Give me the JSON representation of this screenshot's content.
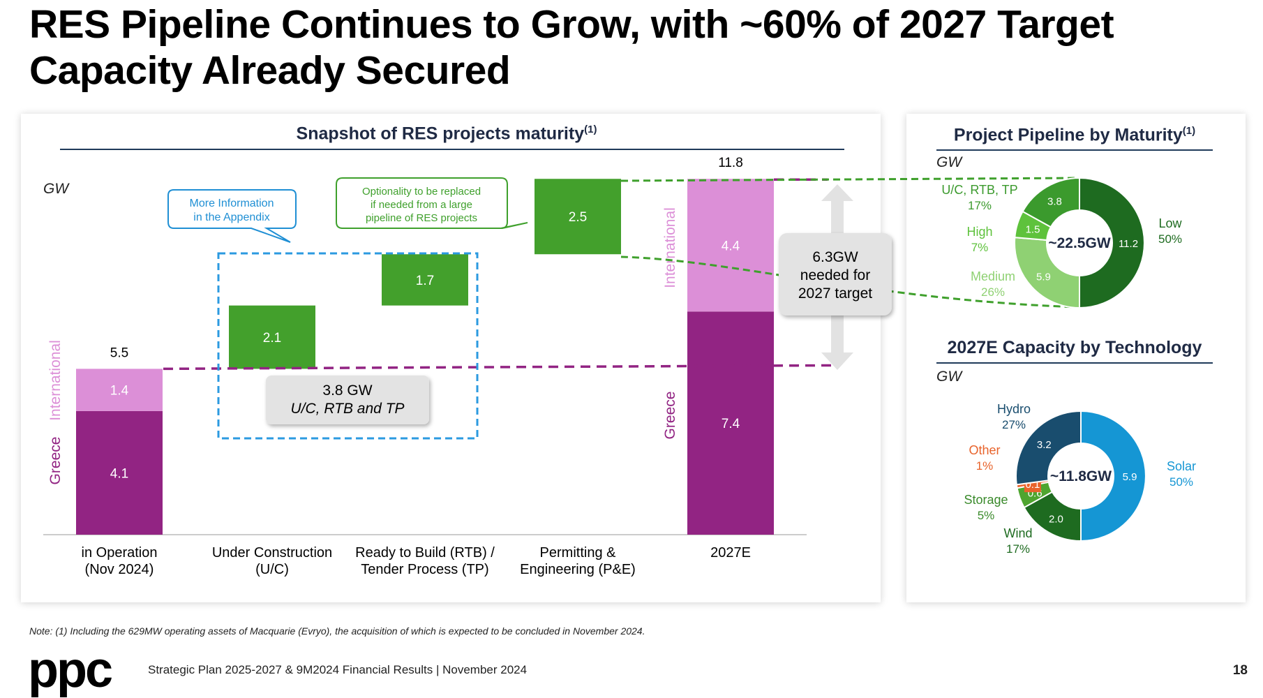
{
  "slide": {
    "title": "RES Pipeline Continues to Grow, with ~60% of 2027 Target Capacity Already Secured",
    "footnote": "Note: (1) Including the 629MW operating assets of Macquarie (Evryo), the acquisition of which is expected to be concluded in November 2024.",
    "footer": "Strategic Plan 2025-2027 & 9M2024 Financial Results | November 2024",
    "page_number": "18",
    "logo_text": "ppc"
  },
  "left_panel": {
    "title": "Snapshot of RES projects maturity",
    "title_sup": "(1)",
    "unit": "GW",
    "callout_appendix": [
      "More Information",
      "in the Appendix"
    ],
    "callout_optionality": [
      "Optionality to be replaced",
      "if needed from a large",
      "pipeline of RES projects"
    ],
    "secured_box": [
      "3.8 GW",
      "U/C, RTB and TP"
    ],
    "needed_box": [
      "6.3GW",
      "needed for",
      "2027 target"
    ],
    "colors": {
      "greece": "#922483",
      "international": "#dc8fd7",
      "pipeline": "#43a02c"
    }
  },
  "chart_data": [
    {
      "type": "bar",
      "subtype": "waterfall",
      "title": "Snapshot of RES projects maturity",
      "ylabel": "GW",
      "categories": [
        [
          "in Operation",
          "(Nov 2024)"
        ],
        [
          "Under Construction",
          "(U/C)"
        ],
        [
          "Ready to Build (RTB) /",
          "Tender Process (TP)"
        ],
        [
          "Permitting &",
          "Engineering (P&E)"
        ],
        [
          "2027E"
        ]
      ],
      "series": [
        {
          "name": "Greece",
          "values": [
            4.1,
            null,
            null,
            null,
            7.4
          ]
        },
        {
          "name": "International",
          "values": [
            1.4,
            null,
            null,
            null,
            4.4
          ]
        },
        {
          "values": [
            null,
            2.1,
            1.7,
            2.5,
            null
          ]
        }
      ],
      "totals": [
        "5.5",
        null,
        null,
        null,
        "11.8"
      ],
      "value_labels": {
        "greece": [
          "4.1",
          "7.4"
        ],
        "international": [
          "1.4",
          "4.4"
        ],
        "steps": [
          "2.1",
          "1.7",
          "2.5"
        ]
      },
      "segment_labels": {
        "greece": "Greece",
        "international": "International"
      },
      "ylim": [
        0,
        11.8
      ],
      "grid": false,
      "legend": "none"
    },
    {
      "type": "pie",
      "subtype": "donut",
      "title": "Project Pipeline by Maturity",
      "title_sup": "(1)",
      "unit": "GW",
      "center_label": "~22.5GW",
      "slices": [
        {
          "label": "Low",
          "pct": "50%",
          "value": 11.2,
          "value_label": "11.2",
          "color": "#1e6b20"
        },
        {
          "label": "Medium",
          "pct": "26%",
          "value": 5.9,
          "value_label": "5.9",
          "color": "#8fd173"
        },
        {
          "label": "High",
          "pct": "7%",
          "value": 1.5,
          "value_label": "1.5",
          "color": "#5ec23c"
        },
        {
          "label": "U/C, RTB, TP",
          "pct": "17%",
          "value": 3.8,
          "value_label": "3.8",
          "color": "#3b9a2d"
        }
      ]
    },
    {
      "type": "pie",
      "subtype": "donut",
      "title": "2027E Capacity by Technology",
      "unit": "GW",
      "center_label": "~11.8GW",
      "slices": [
        {
          "label": "Solar",
          "pct": "50%",
          "value": 5.9,
          "value_label": "5.9",
          "color": "#1596d4"
        },
        {
          "label": "Wind",
          "pct": "17%",
          "value": 2.0,
          "value_label": "2.0",
          "color": "#1e6b20"
        },
        {
          "label": "Storage",
          "pct": "5%",
          "value": 0.6,
          "value_label": "0.6",
          "color": "#4ea52f"
        },
        {
          "label": "Other",
          "pct": "1%",
          "value": 0.1,
          "value_label": "0.1",
          "color": "#e8632b"
        },
        {
          "label": "Hydro",
          "pct": "27%",
          "value": 3.2,
          "value_label": "3.2",
          "color": "#194d6e"
        }
      ]
    }
  ]
}
